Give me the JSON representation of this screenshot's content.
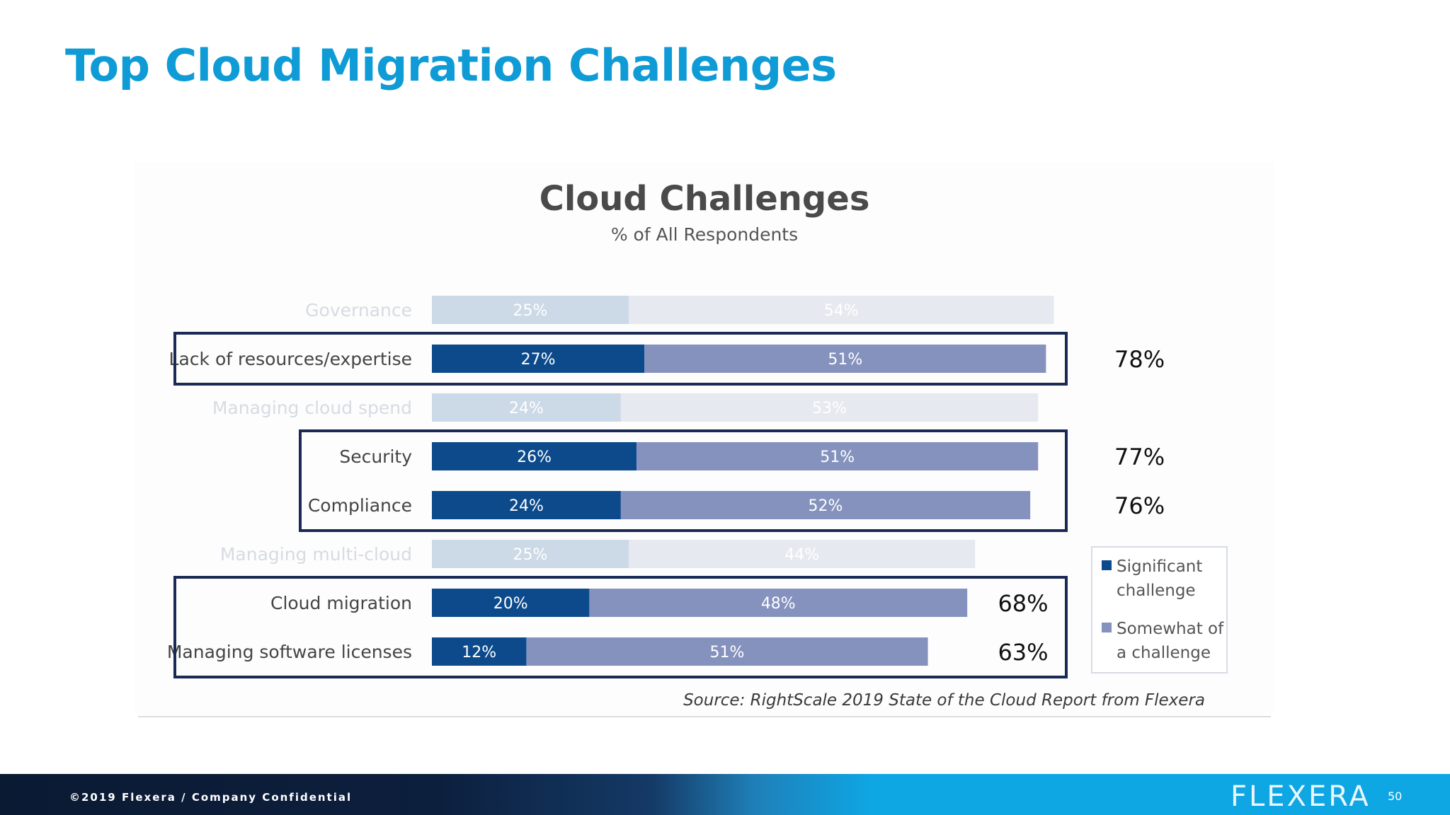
{
  "slide": {
    "title": "Top Cloud Migration Challenges",
    "footer_copyright": "©2019 Flexera / Company Confidential",
    "brand": "FLEXERA",
    "page_number": "50"
  },
  "colors": {
    "title": "#0e9bd6",
    "significant": "#0c4a8c",
    "somewhat": "#8592be",
    "significant_faded": "#ccd9e6",
    "somewhat_faded": "#e6e9ef",
    "highlight_box": "#1b2a55"
  },
  "chart_data": {
    "type": "bar",
    "orientation": "horizontal",
    "stacked": true,
    "title": "Cloud Challenges",
    "subtitle": "% of All Respondents",
    "categories": [
      "Governance",
      "Lack of resources/expertise",
      "Managing cloud spend",
      "Security",
      "Compliance",
      "Managing multi-cloud",
      "Cloud migration",
      "Managing software licenses"
    ],
    "series": [
      {
        "name": "Significant challenge",
        "values": [
          25,
          27,
          24,
          26,
          24,
          25,
          20,
          12
        ]
      },
      {
        "name": "Somewhat of a challenge",
        "values": [
          54,
          51,
          53,
          51,
          52,
          44,
          48,
          51
        ]
      }
    ],
    "data_label_suffix": "%",
    "highlighted": [
      false,
      true,
      false,
      true,
      true,
      false,
      true,
      true
    ],
    "annotations": [
      {
        "category": "Lack of resources/expertise",
        "text": "78%"
      },
      {
        "category": "Security",
        "text": "77%"
      },
      {
        "category": "Compliance",
        "text": "76%"
      },
      {
        "category": "Cloud migration",
        "text": "68%"
      },
      {
        "category": "Managing software licenses",
        "text": "63%"
      }
    ],
    "highlight_groups": [
      [
        "Lack of resources/expertise"
      ],
      [
        "Security",
        "Compliance"
      ],
      [
        "Cloud migration",
        "Managing software licenses"
      ]
    ],
    "legend": {
      "position": "right",
      "entries": [
        "Significant challenge",
        "Somewhat of a challenge"
      ]
    },
    "source": "Source: RightScale 2019 State of the Cloud Report from Flexera",
    "xlim": [
      0,
      100
    ],
    "grid": false
  }
}
